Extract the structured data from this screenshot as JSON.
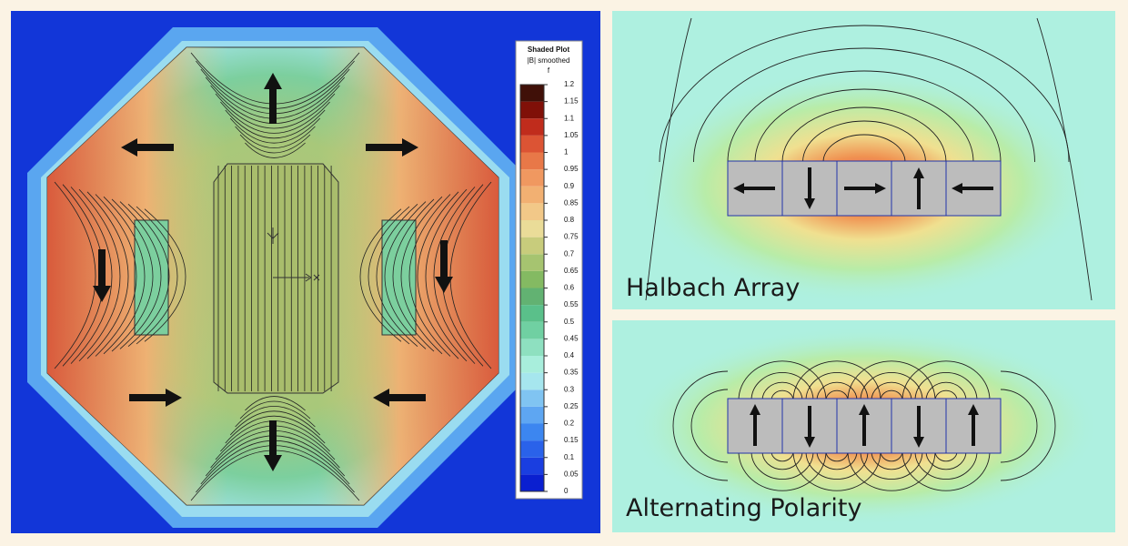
{
  "left_panel": {
    "legend": {
      "title": "Shaded Plot",
      "subtitle": "|B| smoothed",
      "unit": "f",
      "ticks": [
        0,
        0.05,
        0.1,
        0.15,
        0.2,
        0.25,
        0.3,
        0.35,
        0.4,
        0.45,
        0.5,
        0.55,
        0.6,
        0.65,
        0.7,
        0.75,
        0.8,
        0.85,
        0.9,
        0.95,
        1,
        1.05,
        1.1,
        1.15,
        1.2
      ],
      "colors": [
        "#0a1fd0",
        "#1a3ee0",
        "#2a62ea",
        "#3c86f0",
        "#5ea6f2",
        "#80c4f2",
        "#a6e6ee",
        "#a8eedc",
        "#8ee0c0",
        "#70d0a2",
        "#5ac08a",
        "#62b272",
        "#84ba62",
        "#a6c470",
        "#c8cc7c",
        "#eadc98",
        "#f2c888",
        "#f2b072",
        "#f09860",
        "#e87848",
        "#dc5434",
        "#c02c1c",
        "#801008",
        "#401008"
      ]
    }
  },
  "right_panels": [
    {
      "label": "Halbach Array"
    },
    {
      "label": "Alternating Polarity"
    }
  ]
}
